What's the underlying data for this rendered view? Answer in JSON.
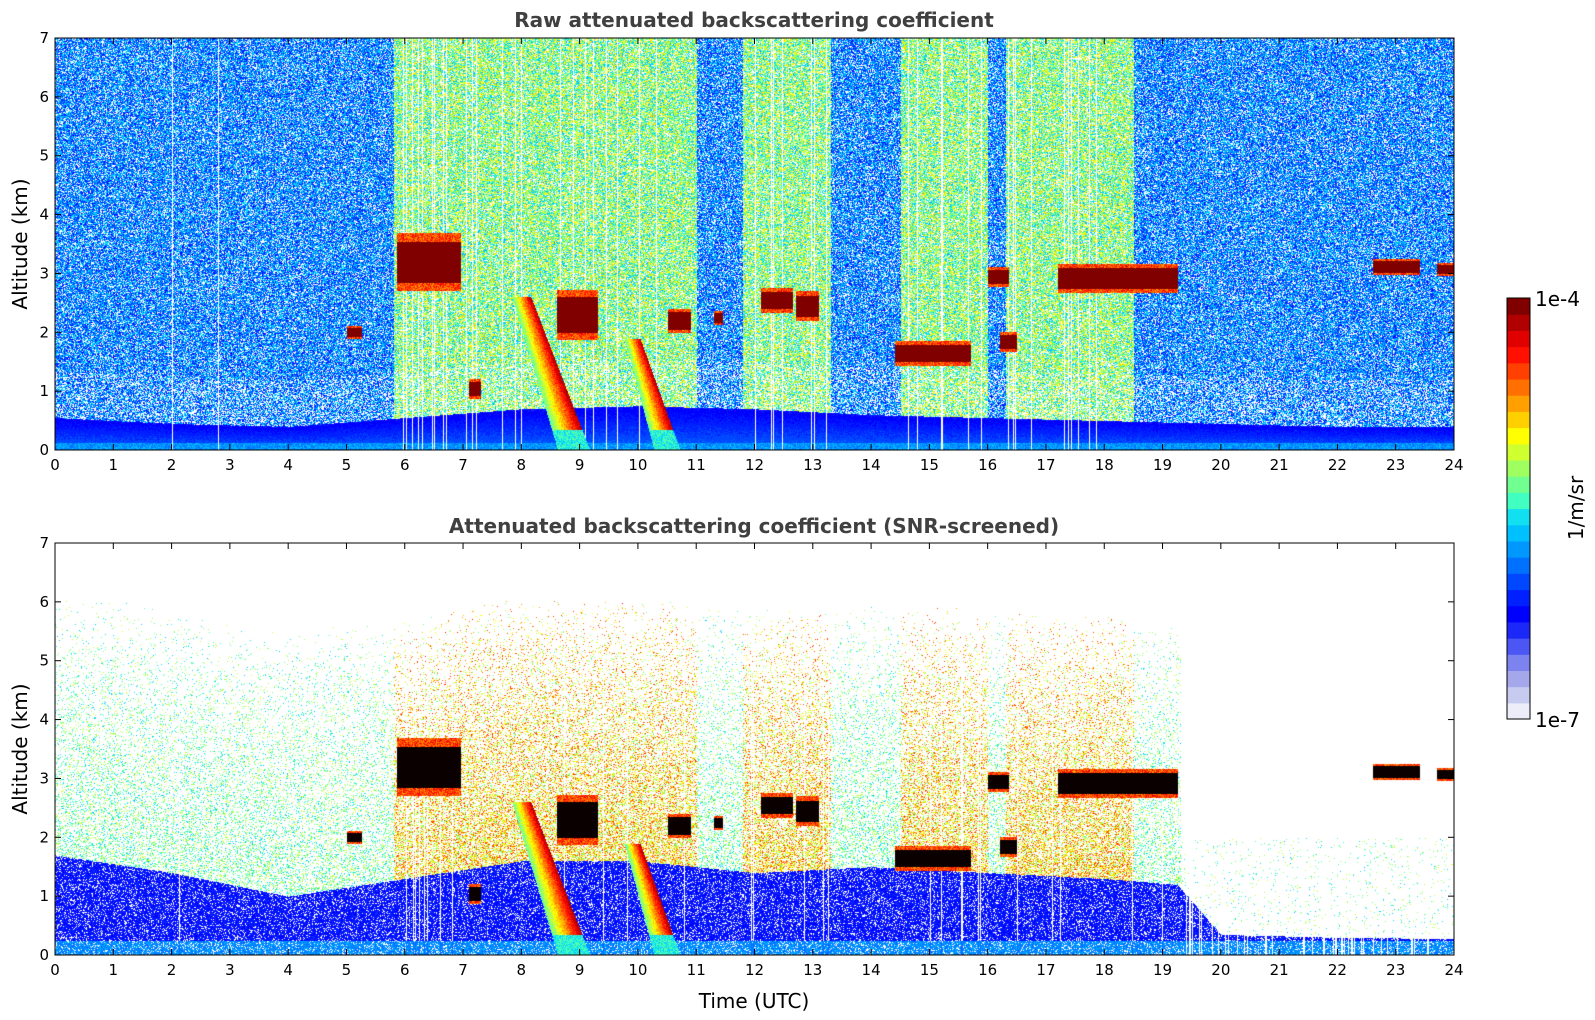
{
  "chart_data": [
    {
      "type": "heatmap",
      "title": "Raw attenuated backscattering coefficient",
      "ylabel": "Altitude (km)",
      "xlabel": "",
      "xlim": [
        0,
        24
      ],
      "ylim": [
        0,
        7
      ],
      "xticks": [
        "0",
        "1",
        "2",
        "3",
        "4",
        "5",
        "6",
        "7",
        "8",
        "9",
        "10",
        "11",
        "12",
        "13",
        "14",
        "15",
        "16",
        "17",
        "18",
        "19",
        "20",
        "21",
        "22",
        "23",
        "24"
      ],
      "yticks": [
        "0",
        "1",
        "2",
        "3",
        "4",
        "5",
        "6",
        "7"
      ],
      "grid": false,
      "features": {
        "boundary_layer": [
          [
            0,
            0.55
          ],
          [
            2,
            0.45
          ],
          [
            4,
            0.4
          ],
          [
            6,
            0.55
          ],
          [
            8,
            0.7
          ],
          [
            10,
            0.75
          ],
          [
            12,
            0.7
          ],
          [
            14,
            0.6
          ],
          [
            16,
            0.55
          ],
          [
            18,
            0.5
          ],
          [
            20,
            0.45
          ],
          [
            22,
            0.4
          ],
          [
            24,
            0.4
          ]
        ],
        "cloud_layers": [
          {
            "t0": 5.85,
            "t1": 6.95,
            "z": 3.2,
            "dz": 0.35
          },
          {
            "t0": 5.0,
            "t1": 5.25,
            "z": 2.0,
            "dz": 0.08
          },
          {
            "t0": 7.1,
            "t1": 7.3,
            "z": 1.05,
            "dz": 0.12
          },
          {
            "t0": 8.6,
            "t1": 9.3,
            "z": 2.3,
            "dz": 0.3
          },
          {
            "t0": 10.5,
            "t1": 10.9,
            "z": 2.2,
            "dz": 0.15
          },
          {
            "t0": 11.3,
            "t1": 11.45,
            "z": 2.25,
            "dz": 0.08
          },
          {
            "t0": 12.1,
            "t1": 12.65,
            "z": 2.55,
            "dz": 0.15
          },
          {
            "t0": 12.7,
            "t1": 13.1,
            "z": 2.45,
            "dz": 0.18
          },
          {
            "t0": 14.4,
            "t1": 15.7,
            "z": 1.65,
            "dz": 0.15
          },
          {
            "t0": 16.0,
            "t1": 16.35,
            "z": 2.95,
            "dz": 0.12
          },
          {
            "t0": 16.2,
            "t1": 16.5,
            "z": 1.85,
            "dz": 0.12
          },
          {
            "t0": 17.2,
            "t1": 19.25,
            "z": 2.92,
            "dz": 0.18
          },
          {
            "t0": 22.6,
            "t1": 23.4,
            "z": 3.12,
            "dz": 0.1
          },
          {
            "t0": 23.7,
            "t1": 24.0,
            "z": 3.08,
            "dz": 0.08
          }
        ],
        "precipitation_shafts": [
          {
            "t_top": 8.0,
            "t_bottom": 8.9,
            "z_top": 2.6,
            "w": 0.55
          },
          {
            "t_top": 9.9,
            "t_bottom": 10.5,
            "z_top": 1.9,
            "w": 0.45
          }
        ],
        "noisy_periods": [
          [
            5.8,
            11.0
          ],
          [
            11.8,
            13.3
          ],
          [
            14.5,
            16.0
          ],
          [
            16.3,
            18.5
          ]
        ]
      }
    },
    {
      "type": "heatmap",
      "title": "Attenuated backscattering coefficient (SNR-screened)",
      "ylabel": "Altitude (km)",
      "xlabel": "Time (UTC)",
      "xlim": [
        0,
        24
      ],
      "ylim": [
        0,
        7
      ],
      "xticks": [
        "0",
        "1",
        "2",
        "3",
        "4",
        "5",
        "6",
        "7",
        "8",
        "9",
        "10",
        "11",
        "12",
        "13",
        "14",
        "15",
        "16",
        "17",
        "18",
        "19",
        "20",
        "21",
        "22",
        "23",
        "24"
      ],
      "yticks": [
        "0",
        "1",
        "2",
        "3",
        "4",
        "5",
        "6",
        "7"
      ],
      "grid": false,
      "features": {
        "screened_layer_top": [
          [
            0,
            1.7
          ],
          [
            2,
            1.4
          ],
          [
            4,
            1.0
          ],
          [
            6,
            1.3
          ],
          [
            8,
            1.6
          ],
          [
            10,
            1.6
          ],
          [
            12,
            1.4
          ],
          [
            14,
            1.5
          ],
          [
            16,
            1.4
          ],
          [
            18,
            1.3
          ],
          [
            19.25,
            1.2
          ],
          [
            20,
            0.35
          ],
          [
            22,
            0.3
          ],
          [
            24,
            0.28
          ]
        ],
        "cloud_layers_color": "#000000"
      }
    }
  ],
  "colorbar": {
    "label": "1/m/sr",
    "max_label": "1e-4",
    "min_label": "1e-7",
    "colors": [
      "#ecedf8",
      "#c8cbf0",
      "#a4a8ea",
      "#7c83ef",
      "#4b56f4",
      "#1b28f8",
      "#0000ff",
      "#0020ff",
      "#0048ff",
      "#0070ff",
      "#0098ff",
      "#00c0ff",
      "#10e0f0",
      "#40ffc0",
      "#70ff90",
      "#a0ff60",
      "#d0ff30",
      "#ffff00",
      "#ffd000",
      "#ffa000",
      "#ff7000",
      "#ff4000",
      "#ff1000",
      "#e00000",
      "#b00000",
      "#800000"
    ]
  }
}
